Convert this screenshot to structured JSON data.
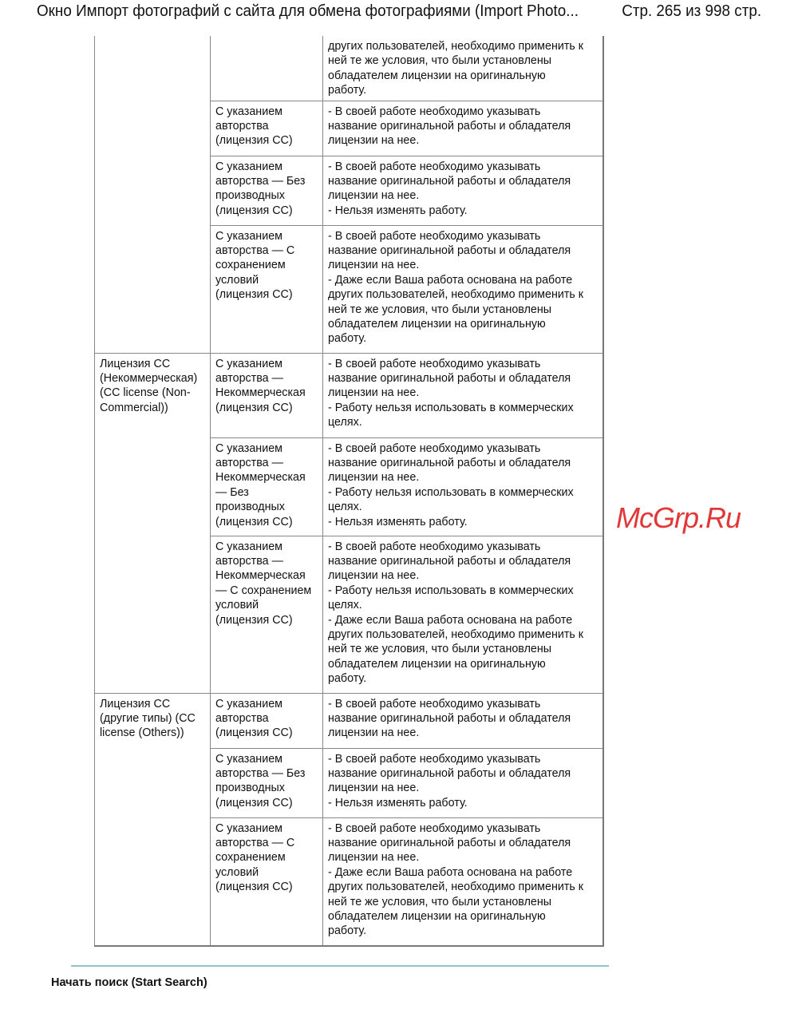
{
  "header": {
    "title": "Окно Импорт фотографий с сайта для обмена фотографиями (Import Photo...",
    "pages": "Стр. 265 из 998 стр."
  },
  "table": {
    "rows": [
      {
        "group": "",
        "groupSpan": 4,
        "license": "",
        "desc": "других пользователей, необходимо применить к\nней те же условия, что были установлены\nобладателем лицензии на оригинальную\nработу.",
        "h": 81
      },
      {
        "license": "С указанием\nавторства\n(лицензия CC)",
        "desc": "- В своей работе необходимо указывать\nназвание оригинальной работы и обладателя\nлицензии на нее.",
        "h": 69
      },
      {
        "license": "С указанием\nавторства — Без\nпроизводных\n(лицензия CC)",
        "desc": "- В своей работе необходимо указывать\nназвание оригинальной работы и обладателя\nлицензии на нее.\n- Нельзя изменять работу.",
        "h": 87
      },
      {
        "license": "С указанием\nавторства — С\nсохранением\nусловий\n(лицензия CC)",
        "desc": "- В своей работе необходимо указывать\nназвание оригинальной работы и обладателя\nлицензии на нее.\n- Даже если Ваша работа основана на работе\nдругих пользователей, необходимо применить к\nней те же условия, что были установлены\nобладателем лицензии на оригинальную\nработу.",
        "h": 160
      },
      {
        "group": "Лицензия CC\n(Некоммерческая)\n(CC license (Non-\nCommercial))",
        "groupSpan": 3,
        "license": "С указанием\nавторства —\nНекоммерческая\n(лицензия CC)",
        "desc": "- В своей работе необходимо указывать\nназвание оригинальной работы и обладателя\nлицензии на нее.\n- Работу нельзя использовать в коммерческих\nцелях.",
        "h": 106
      },
      {
        "license": "С указанием\nавторства —\nНекоммерческая\n— Без\nпроизводных\n(лицензия CC)",
        "desc": "- В своей работе необходимо указывать\nназвание оригинальной работы и обладателя\nлицензии на нее.\n- Работу нельзя использовать в коммерческих\nцелях.\n- Нельзя изменять работу.",
        "h": 123
      },
      {
        "license": "С указанием\nавторства —\nНекоммерческая\n— С сохранением\nусловий\n(лицензия CC)",
        "desc": "- В своей работе необходимо указывать\nназвание оригинальной работы и обладателя\nлицензии на нее.\n- Работу нельзя использовать в коммерческих\nцелях.\n- Даже если Ваша работа основана на работе\nдругих пользователей, необходимо применить к\nней те же условия, что были установлены\nобладателем лицензии на оригинальную\nработу.",
        "h": 197
      },
      {
        "group": "Лицензия CC\n(другие типы) (CC\nlicense (Others))",
        "groupSpan": 3,
        "license": "С указанием\nавторства\n(лицензия CC)",
        "desc": "- В своей работе необходимо указывать\nназвание оригинальной работы и обладателя\nлицензии на нее.",
        "h": 69
      },
      {
        "license": "С указанием\nавторства — Без\nпроизводных\n(лицензия CC)",
        "desc": "- В своей работе необходимо указывать\nназвание оригинальной работы и обладателя\nлицензии на нее.\n- Нельзя изменять работу.",
        "h": 87
      },
      {
        "license": "С указанием\nавторства — С\nсохранением\nусловий\n(лицензия CC)",
        "desc": "- В своей работе необходимо указывать\nназвание оригинальной работы и обладателя\nлицензии на нее.\n- Даже если Ваша работа основана на работе\nдругих пользователей, необходимо применить к\nней те же условия, что были установлены\nобладателем лицензии на оригинальную\nработу.",
        "h": 161
      }
    ]
  },
  "footer": {
    "start_search": "Начать поиск (Start Search)"
  },
  "watermark": "McGrp.Ru",
  "colors": {
    "rule": "#8fc4c8",
    "watermark": "#dc1414"
  }
}
